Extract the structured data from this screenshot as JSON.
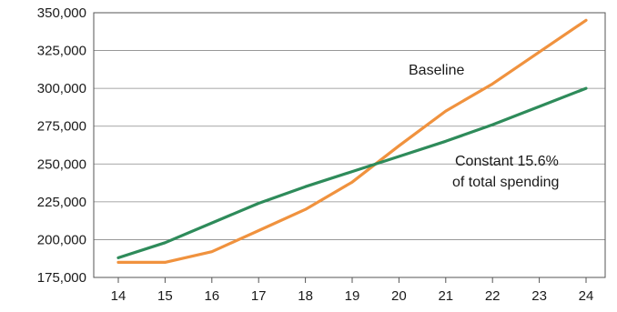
{
  "chart_data": {
    "type": "line",
    "x": [
      "14",
      "15",
      "16",
      "17",
      "18",
      "19",
      "20",
      "21",
      "22",
      "23",
      "24"
    ],
    "series": [
      {
        "name": "Baseline",
        "color": "#F0923E",
        "values": [
          185000,
          185000,
          192000,
          206000,
          220000,
          238000,
          262000,
          285000,
          303000,
          324000,
          345000
        ]
      },
      {
        "name": "Constant 15.6% of total spending",
        "color": "#2E8B5A",
        "values": [
          188000,
          198000,
          211000,
          224000,
          235000,
          245000,
          255000,
          265000,
          276000,
          288000,
          300000
        ]
      }
    ],
    "ylim": [
      175000,
      350000
    ],
    "yticks": [
      "175,000",
      "200,000",
      "225,000",
      "250,000",
      "275,000",
      "300,000",
      "325,000",
      "350,000"
    ],
    "ytick_values": [
      175000,
      200000,
      225000,
      250000,
      275000,
      300000,
      325000,
      350000
    ],
    "grid": true,
    "annotations": [
      {
        "text": "Baseline",
        "series": 0
      },
      {
        "text": "Constant 15.6%",
        "series": 1
      },
      {
        "text": "of total spending",
        "series": 1
      }
    ]
  }
}
